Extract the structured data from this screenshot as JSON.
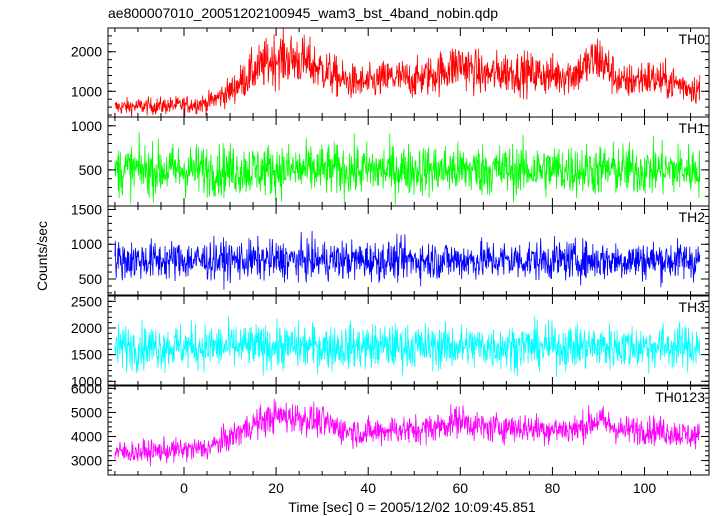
{
  "chart_data": {
    "type": "line",
    "title": "ae800007010_20051202100945_wam3_bst_4band_nobin.qdp",
    "xlabel": "Time [sec] 0 = 2005/12/02 10:09:45.851",
    "ylabel": "Counts/sec",
    "xlim": [
      -16.5,
      114
    ],
    "x_ticks": [
      0,
      20,
      40,
      60,
      80,
      100
    ],
    "x_tick_labels": [
      "0",
      "20",
      "40",
      "60",
      "80",
      "100"
    ],
    "data_x_range": [
      -15,
      112
    ],
    "panels": [
      {
        "name": "TH0",
        "color": "#ff0000",
        "ylim": [
          350,
          2600
        ],
        "y_ticks": [
          1000,
          2000
        ],
        "y_tick_labels": [
          "1000",
          "2000"
        ],
        "trend": {
          "x": [
            -15,
            -10,
            -5,
            0,
            5,
            10,
            15,
            20,
            25,
            30,
            35,
            40,
            45,
            50,
            55,
            60,
            65,
            70,
            75,
            80,
            85,
            90,
            95,
            100,
            105,
            110,
            112
          ],
          "y": [
            600,
            620,
            630,
            650,
            700,
            1000,
            1500,
            1850,
            1800,
            1550,
            1250,
            1200,
            1350,
            1300,
            1450,
            1700,
            1400,
            1500,
            1450,
            1400,
            1450,
            1850,
            1200,
            1350,
            1250,
            1100,
            1050
          ]
        },
        "spread": [
          200,
          650
        ]
      },
      {
        "name": "TH1",
        "color": "#00ff00",
        "ylim": [
          90,
          1100
        ],
        "y_ticks": [
          500,
          1000
        ],
        "y_tick_labels": [
          "500",
          "1000"
        ],
        "trend": {
          "x": [
            -15,
            112
          ],
          "y": [
            500,
            500
          ]
        },
        "spread": [
          280,
          280
        ]
      },
      {
        "name": "TH2",
        "color": "#0000ff",
        "ylim": [
          270,
          1550
        ],
        "y_ticks": [
          500,
          1000,
          1500
        ],
        "y_tick_labels": [
          "500",
          "1000",
          "1500"
        ],
        "trend": {
          "x": [
            -15,
            112
          ],
          "y": [
            770,
            770
          ]
        },
        "spread": [
          270,
          270
        ]
      },
      {
        "name": "TH3",
        "color": "#00ffff",
        "ylim": [
          930,
          2600
        ],
        "y_ticks": [
          1000,
          1500,
          2000,
          2500
        ],
        "y_tick_labels": [
          "1000",
          "1500",
          "2000",
          "2500"
        ],
        "trend": {
          "x": [
            -15,
            112
          ],
          "y": [
            1650,
            1650
          ]
        },
        "spread": [
          400,
          400
        ]
      },
      {
        "name": "TH0123",
        "color": "#ff00ff",
        "ylim": [
          2400,
          6100
        ],
        "y_ticks": [
          3000,
          4000,
          5000,
          6000
        ],
        "y_tick_labels": [
          "3000",
          "4000",
          "5000",
          "6000"
        ],
        "trend": {
          "x": [
            -15,
            -10,
            -5,
            0,
            5,
            10,
            15,
            20,
            25,
            30,
            35,
            40,
            45,
            50,
            55,
            60,
            65,
            70,
            75,
            80,
            85,
            90,
            95,
            100,
            105,
            110,
            112
          ],
          "y": [
            3350,
            3350,
            3400,
            3450,
            3500,
            3950,
            4500,
            4850,
            4800,
            4600,
            4250,
            4150,
            4300,
            4250,
            4400,
            4700,
            4350,
            4400,
            4350,
            4300,
            4300,
            4700,
            4250,
            4300,
            4200,
            4050,
            4000
          ]
        },
        "spread": [
          450,
          650
        ]
      }
    ],
    "grid": false,
    "legend": "none"
  }
}
